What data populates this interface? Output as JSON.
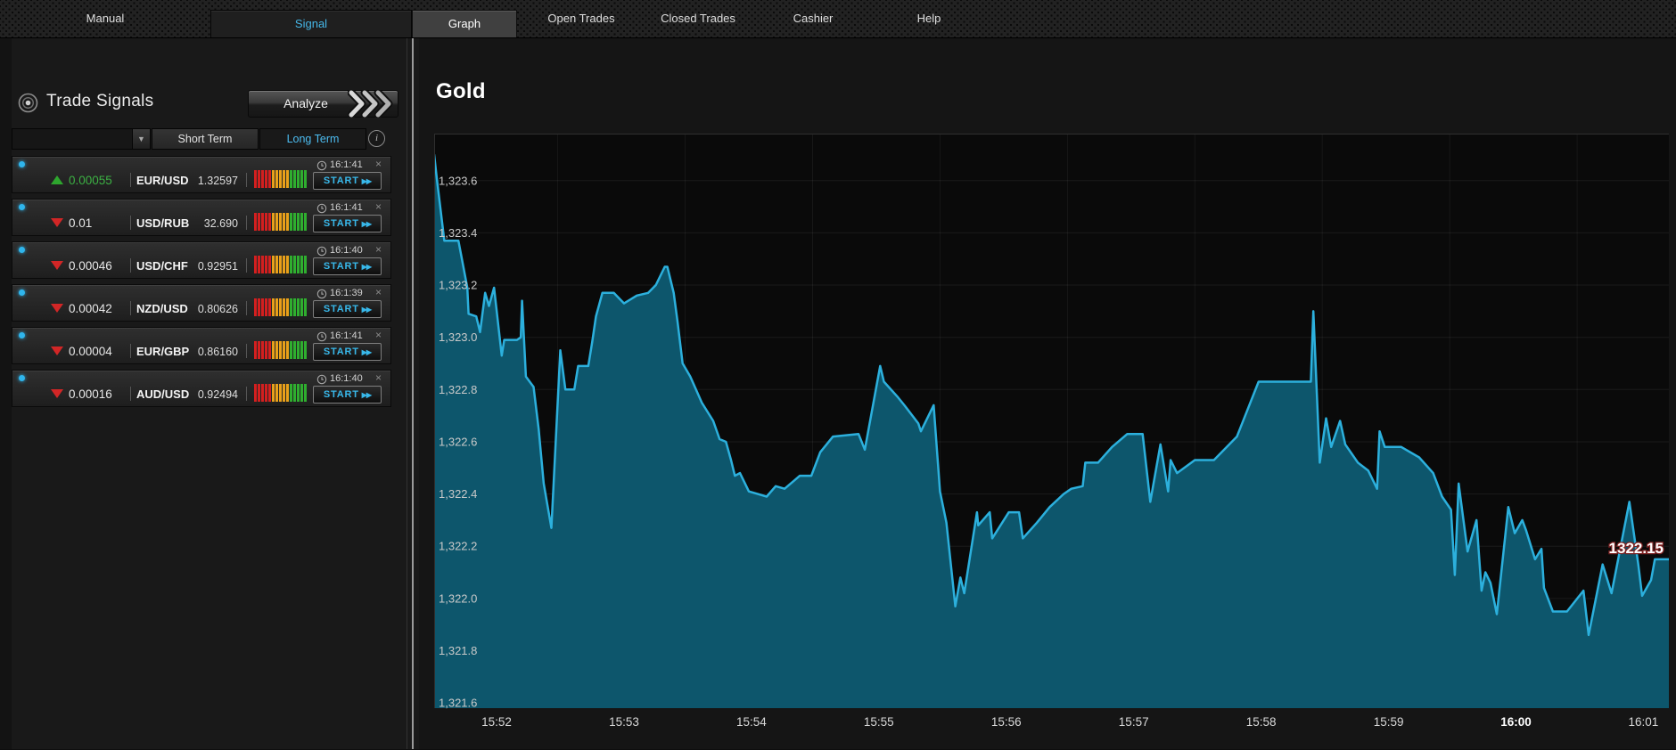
{
  "topnav": {
    "items": [
      {
        "name": "manual",
        "label": "Manual",
        "kind": "plain"
      },
      {
        "name": "signal",
        "label": "Signal",
        "kind": "signal"
      },
      {
        "name": "graph",
        "label": "Graph",
        "kind": "graph"
      },
      {
        "name": "open-trades",
        "label": "Open Trades",
        "kind": "plain"
      },
      {
        "name": "closed-trades",
        "label": "Closed Trades",
        "kind": "plain"
      },
      {
        "name": "cashier",
        "label": "Cashier",
        "kind": "plain"
      },
      {
        "name": "help",
        "label": "Help",
        "kind": "plain"
      }
    ]
  },
  "signals": {
    "title": "Trade Signals",
    "analyze_label": "Analyze",
    "filter": {
      "short_term": "Short Term",
      "long_term": "Long Term",
      "active": "long_term",
      "dropdown_caret": "▼",
      "info_glyph": "i"
    },
    "strength_bars": {
      "counts": [
        5,
        5,
        5
      ],
      "colors": [
        "#d41f1f",
        "#e8a01a",
        "#2fae2f"
      ]
    },
    "rows": [
      {
        "direction": "up",
        "value": "0.00055",
        "pair": "EUR/USD",
        "rate": "1.32597",
        "time": "16:1:41",
        "action": "START",
        "close_glyph": "×"
      },
      {
        "direction": "down",
        "value": "0.01",
        "pair": "USD/RUB",
        "rate": "32.690",
        "time": "16:1:41",
        "action": "START",
        "close_glyph": "×"
      },
      {
        "direction": "down",
        "value": "0.00046",
        "pair": "USD/CHF",
        "rate": "0.92951",
        "time": "16:1:40",
        "action": "START",
        "close_glyph": "×"
      },
      {
        "direction": "down",
        "value": "0.00042",
        "pair": "NZD/USD",
        "rate": "0.80626",
        "time": "16:1:39",
        "action": "START",
        "close_glyph": "×"
      },
      {
        "direction": "down",
        "value": "0.00004",
        "pair": "EUR/GBP",
        "rate": "0.86160",
        "time": "16:1:41",
        "action": "START",
        "close_glyph": "×"
      },
      {
        "direction": "down",
        "value": "0.00016",
        "pair": "AUD/USD",
        "rate": "0.92494",
        "time": "16:1:40",
        "action": "START",
        "close_glyph": "×"
      }
    ]
  },
  "colors": {
    "accent": "#38b8ea",
    "up_green": "#3cb043",
    "down_red": "#d22626",
    "chart_line": "#2cb0dd",
    "chart_fill": "#0d566c",
    "chart_bg": "#0a0a0a"
  },
  "chart_data": {
    "type": "area",
    "title": "Gold",
    "price_label": "1322.15",
    "x_unit": "minutes after 15:00",
    "xlim": [
      51.51,
      61.2
    ],
    "ylim": [
      1321.58,
      1323.78
    ],
    "grid": true,
    "xticks": [
      {
        "t": 52,
        "label": "15:52",
        "bold": false
      },
      {
        "t": 53,
        "label": "15:53",
        "bold": false
      },
      {
        "t": 54,
        "label": "15:54",
        "bold": false
      },
      {
        "t": 55,
        "label": "15:55",
        "bold": false
      },
      {
        "t": 56,
        "label": "15:56",
        "bold": false
      },
      {
        "t": 57,
        "label": "15:57",
        "bold": false
      },
      {
        "t": 58,
        "label": "15:58",
        "bold": false
      },
      {
        "t": 59,
        "label": "15:59",
        "bold": false
      },
      {
        "t": 60,
        "label": "16:00",
        "bold": true
      },
      {
        "t": 61,
        "label": "16:01",
        "bold": false
      }
    ],
    "x_gridlines": [
      52.48,
      53.48,
      54.48,
      55.48,
      56.48,
      57.48,
      58.48,
      59.48,
      60.48
    ],
    "yticks": [
      {
        "v": 1321.6,
        "label": "1,321.6"
      },
      {
        "v": 1321.8,
        "label": "1,321.8"
      },
      {
        "v": 1322.0,
        "label": "1,322.0"
      },
      {
        "v": 1322.2,
        "label": "1,322.2"
      },
      {
        "v": 1322.4,
        "label": "1,322.4"
      },
      {
        "v": 1322.6,
        "label": "1,322.6"
      },
      {
        "v": 1322.8,
        "label": "1,322.8"
      },
      {
        "v": 1323.0,
        "label": "1,323.0"
      },
      {
        "v": 1323.2,
        "label": "1,323.2"
      },
      {
        "v": 1323.4,
        "label": "1,323.4"
      },
      {
        "v": 1323.6,
        "label": "1,323.6"
      }
    ],
    "points": [
      [
        51.51,
        1323.7
      ],
      [
        51.53,
        1323.61
      ],
      [
        51.59,
        1323.37
      ],
      [
        51.7,
        1323.37
      ],
      [
        51.72,
        1323.32
      ],
      [
        51.77,
        1323.19
      ],
      [
        51.78,
        1323.09
      ],
      [
        51.84,
        1323.08
      ],
      [
        51.87,
        1323.02
      ],
      [
        51.91,
        1323.17
      ],
      [
        51.94,
        1323.12
      ],
      [
        51.98,
        1323.19
      ],
      [
        52.04,
        1322.93
      ],
      [
        52.06,
        1322.99
      ],
      [
        52.16,
        1322.99
      ],
      [
        52.19,
        1323.0
      ],
      [
        52.2,
        1323.14
      ],
      [
        52.23,
        1322.85
      ],
      [
        52.29,
        1322.81
      ],
      [
        52.33,
        1322.65
      ],
      [
        52.37,
        1322.44
      ],
      [
        52.43,
        1322.27
      ],
      [
        52.5,
        1322.95
      ],
      [
        52.54,
        1322.8
      ],
      [
        52.61,
        1322.8
      ],
      [
        52.64,
        1322.89
      ],
      [
        52.72,
        1322.89
      ],
      [
        52.75,
        1322.98
      ],
      [
        52.78,
        1323.08
      ],
      [
        52.83,
        1323.17
      ],
      [
        52.92,
        1323.17
      ],
      [
        53.0,
        1323.13
      ],
      [
        53.1,
        1323.16
      ],
      [
        53.19,
        1323.17
      ],
      [
        53.25,
        1323.2
      ],
      [
        53.32,
        1323.27
      ],
      [
        53.34,
        1323.27
      ],
      [
        53.39,
        1323.17
      ],
      [
        53.42,
        1323.06
      ],
      [
        53.46,
        1322.9
      ],
      [
        53.52,
        1322.85
      ],
      [
        53.61,
        1322.75
      ],
      [
        53.7,
        1322.68
      ],
      [
        53.75,
        1322.61
      ],
      [
        53.8,
        1322.6
      ],
      [
        53.84,
        1322.53
      ],
      [
        53.87,
        1322.47
      ],
      [
        53.91,
        1322.48
      ],
      [
        53.98,
        1322.41
      ],
      [
        54.05,
        1322.4
      ],
      [
        54.12,
        1322.39
      ],
      [
        54.19,
        1322.43
      ],
      [
        54.26,
        1322.42
      ],
      [
        54.38,
        1322.47
      ],
      [
        54.47,
        1322.47
      ],
      [
        54.54,
        1322.56
      ],
      [
        54.64,
        1322.62
      ],
      [
        54.84,
        1322.63
      ],
      [
        54.89,
        1322.57
      ],
      [
        55.01,
        1322.89
      ],
      [
        55.04,
        1322.83
      ],
      [
        55.15,
        1322.77
      ],
      [
        55.2,
        1322.74
      ],
      [
        55.31,
        1322.67
      ],
      [
        55.33,
        1322.64
      ],
      [
        55.43,
        1322.74
      ],
      [
        55.48,
        1322.41
      ],
      [
        55.53,
        1322.29
      ],
      [
        55.6,
        1321.97
      ],
      [
        55.64,
        1322.08
      ],
      [
        55.67,
        1322.02
      ],
      [
        55.77,
        1322.33
      ],
      [
        55.78,
        1322.28
      ],
      [
        55.87,
        1322.33
      ],
      [
        55.89,
        1322.23
      ],
      [
        56.02,
        1322.33
      ],
      [
        56.1,
        1322.33
      ],
      [
        56.13,
        1322.23
      ],
      [
        56.24,
        1322.29
      ],
      [
        56.34,
        1322.35
      ],
      [
        56.45,
        1322.4
      ],
      [
        56.51,
        1322.42
      ],
      [
        56.6,
        1322.43
      ],
      [
        56.62,
        1322.52
      ],
      [
        56.72,
        1322.52
      ],
      [
        56.83,
        1322.58
      ],
      [
        56.95,
        1322.63
      ],
      [
        57.07,
        1322.63
      ],
      [
        57.13,
        1322.37
      ],
      [
        57.21,
        1322.59
      ],
      [
        57.27,
        1322.41
      ],
      [
        57.29,
        1322.53
      ],
      [
        57.34,
        1322.48
      ],
      [
        57.48,
        1322.53
      ],
      [
        57.63,
        1322.53
      ],
      [
        57.81,
        1322.62
      ],
      [
        57.98,
        1322.83
      ],
      [
        58.39,
        1322.83
      ],
      [
        58.41,
        1323.1
      ],
      [
        58.46,
        1322.52
      ],
      [
        58.51,
        1322.69
      ],
      [
        58.55,
        1322.58
      ],
      [
        58.62,
        1322.68
      ],
      [
        58.66,
        1322.59
      ],
      [
        58.76,
        1322.52
      ],
      [
        58.84,
        1322.49
      ],
      [
        58.91,
        1322.42
      ],
      [
        58.93,
        1322.64
      ],
      [
        58.97,
        1322.58
      ],
      [
        59.1,
        1322.58
      ],
      [
        59.24,
        1322.54
      ],
      [
        59.35,
        1322.48
      ],
      [
        59.42,
        1322.39
      ],
      [
        59.49,
        1322.34
      ],
      [
        59.52,
        1322.09
      ],
      [
        59.55,
        1322.44
      ],
      [
        59.62,
        1322.18
      ],
      [
        59.69,
        1322.3
      ],
      [
        59.73,
        1322.03
      ],
      [
        59.76,
        1322.1
      ],
      [
        59.8,
        1322.06
      ],
      [
        59.85,
        1321.94
      ],
      [
        59.94,
        1322.35
      ],
      [
        59.99,
        1322.25
      ],
      [
        60.05,
        1322.3
      ],
      [
        60.08,
        1322.26
      ],
      [
        60.15,
        1322.15
      ],
      [
        60.2,
        1322.19
      ],
      [
        60.22,
        1322.04
      ],
      [
        60.29,
        1321.95
      ],
      [
        60.4,
        1321.95
      ],
      [
        60.53,
        1322.03
      ],
      [
        60.57,
        1321.86
      ],
      [
        60.68,
        1322.13
      ],
      [
        60.75,
        1322.02
      ],
      [
        60.89,
        1322.37
      ],
      [
        60.96,
        1322.13
      ],
      [
        60.99,
        1322.01
      ],
      [
        61.06,
        1322.07
      ],
      [
        61.09,
        1322.15
      ],
      [
        61.2,
        1322.15
      ]
    ]
  }
}
